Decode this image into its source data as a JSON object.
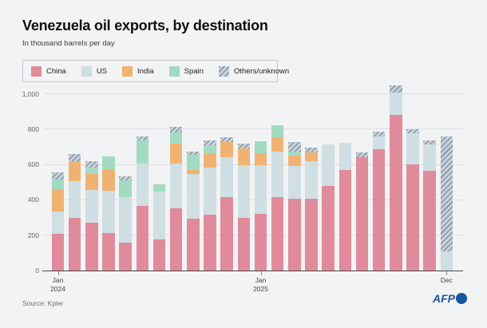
{
  "header": {
    "title": "Venezuela oil exports, by destination",
    "subtitle": "In thousand barrels per day"
  },
  "chart_data": {
    "type": "bar",
    "stacked": true,
    "title": "Venezuela oil exports, by destination",
    "unit_label": "In thousand barrels per day",
    "ylim": [
      0,
      1100
    ],
    "grid": true,
    "legend_position": "top",
    "yticks": [
      {
        "value": 0,
        "label": "0"
      },
      {
        "value": 200,
        "label": "200"
      },
      {
        "value": 400,
        "label": "400"
      },
      {
        "value": 600,
        "label": "600"
      },
      {
        "value": 800,
        "label": "800"
      },
      {
        "value": 1000,
        "label": "1,000"
      }
    ],
    "categories": [
      "Jan 2024",
      "Feb 2024",
      "Mar 2024",
      "Apr 2024",
      "May 2024",
      "Jun 2024",
      "Jul 2024",
      "Aug 2024",
      "Sep 2024",
      "Oct 2024",
      "Nov 2024",
      "Dec 2024",
      "Jan 2025",
      "Feb 2025",
      "Mar 2025",
      "Apr 2025",
      "May 2025",
      "Jun 2025",
      "Jul 2025",
      "Aug 2025",
      "Sep 2025",
      "Oct 2025",
      "Nov 2025",
      "Dec 2025"
    ],
    "xtick_labels": [
      {
        "index": 0,
        "line1": "Jan",
        "line2": "2024"
      },
      {
        "index": 12,
        "line1": "Jan",
        "line2": "2025"
      },
      {
        "index": 23,
        "line1": "Dec",
        "line2": ""
      }
    ],
    "series": [
      {
        "name": "China",
        "color": "#df8b9b",
        "hatched": false,
        "values": [
          208,
          299,
          273,
          213,
          160,
          367,
          175,
          354,
          295,
          316,
          415,
          298,
          323,
          418,
          407,
          405,
          480,
          568,
          640,
          689,
          880,
          601,
          565,
          0
        ]
      },
      {
        "name": "US",
        "color": "#cfdfe3",
        "hatched": false,
        "values": [
          126,
          209,
          185,
          239,
          257,
          239,
          272,
          252,
          250,
          267,
          225,
          300,
          275,
          256,
          184,
          215,
          235,
          154,
          0,
          72,
          128,
          175,
          148,
          110
        ]
      },
      {
        "name": "India",
        "color": "#f0b272",
        "hatched": false,
        "values": [
          125,
          108,
          90,
          124,
          0,
          0,
          0,
          113,
          25,
          83,
          90,
          94,
          68,
          82,
          60,
          50,
          0,
          0,
          0,
          0,
          0,
          0,
          0,
          0
        ]
      },
      {
        "name": "Spain",
        "color": "#a2dbc1",
        "hatched": false,
        "values": [
          56,
          0,
          35,
          72,
          95,
          131,
          43,
          65,
          85,
          43,
          0,
          0,
          65,
          68,
          22,
          0,
          0,
          0,
          0,
          0,
          0,
          0,
          0,
          0
        ]
      },
      {
        "name": "Others/unknown",
        "color": "#c9d1d9",
        "stripe": "#8593a5",
        "hatched": true,
        "values": [
          40,
          44,
          35,
          0,
          21,
          23,
          0,
          29,
          20,
          28,
          25,
          27,
          0,
          0,
          53,
          25,
          0,
          0,
          30,
          25,
          40,
          25,
          25,
          648
        ]
      }
    ]
  },
  "footer": {
    "source": "Source: Kpler",
    "logo_text": "AFP"
  }
}
